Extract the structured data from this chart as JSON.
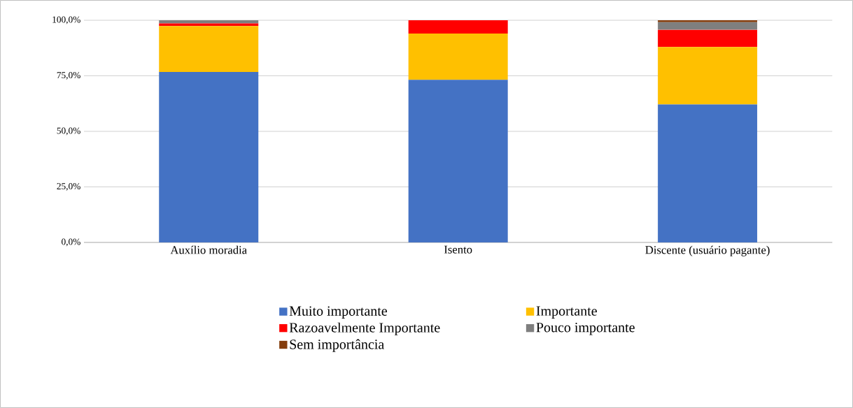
{
  "chart_data": {
    "type": "bar",
    "stacked": true,
    "categories": [
      "Auxílio moradia",
      "Isento",
      "Discente (usuário pagante)"
    ],
    "series": [
      {
        "name": "Muito importante",
        "color": "#4472c4",
        "values": [
          76.7,
          73.2,
          62.1
        ]
      },
      {
        "name": "Importante",
        "color": "#ffc000",
        "values": [
          20.7,
          20.8,
          25.9
        ]
      },
      {
        "name": "Razoavelmente Importante",
        "color": "#ff0000",
        "values": [
          1.2,
          6.0,
          7.7
        ]
      },
      {
        "name": "Pouco importante",
        "color": "#7f7f7f",
        "values": [
          1.4,
          0,
          3.4
        ]
      },
      {
        "name": "Sem importância",
        "color": "#843c0c",
        "values": [
          0,
          0,
          0.9
        ]
      }
    ],
    "ylim": [
      0,
      100
    ],
    "yticks": [
      {
        "value": 0,
        "label": "0,0%"
      },
      {
        "value": 25,
        "label": "25,0%"
      },
      {
        "value": 50,
        "label": "50,0%"
      },
      {
        "value": 75,
        "label": "75,0%"
      },
      {
        "value": 100,
        "label": "100,0%"
      }
    ],
    "grid": "y",
    "legend": "bottom"
  }
}
